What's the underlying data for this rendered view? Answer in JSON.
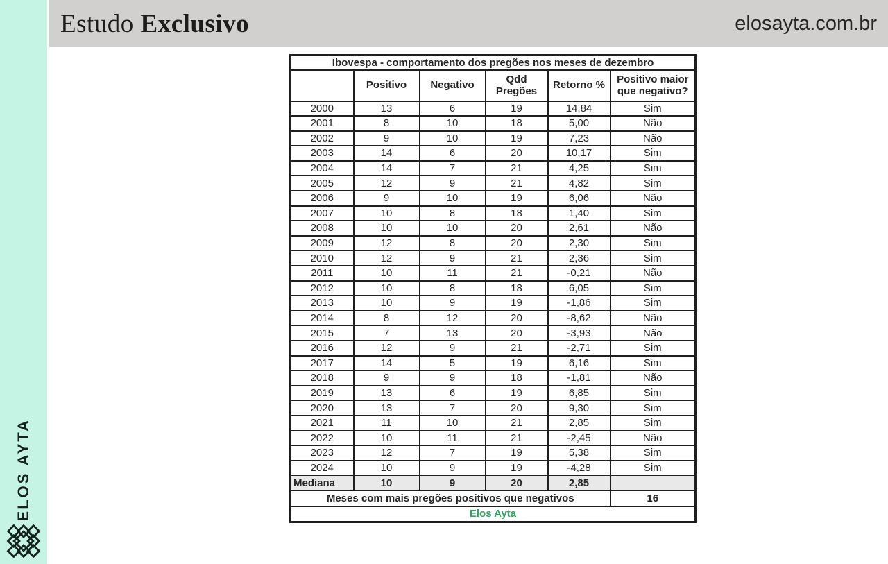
{
  "sidebar": {
    "brand": "ELOS AYTA",
    "bg_color": "#c6f4e4"
  },
  "header": {
    "title_regular": "Estudo ",
    "title_bold": "Exclusivo",
    "site": "elosayta.com.br",
    "bg_color": "#d2d0ce"
  },
  "chart_data": {
    "type": "table",
    "title": "Ibovespa - comportamento dos pregões nos meses de dezembro",
    "columns": [
      "",
      "Positivo",
      "Negativo",
      "Qdd\nPregões",
      "Retorno %",
      "Positivo maior\nque negativo?"
    ],
    "rows": [
      [
        "2000",
        "13",
        "6",
        "19",
        "14,84",
        "Sim"
      ],
      [
        "2001",
        "8",
        "10",
        "18",
        "5,00",
        "Não"
      ],
      [
        "2002",
        "9",
        "10",
        "19",
        "7,23",
        "Não"
      ],
      [
        "2003",
        "14",
        "6",
        "20",
        "10,17",
        "Sim"
      ],
      [
        "2004",
        "14",
        "7",
        "21",
        "4,25",
        "Sim"
      ],
      [
        "2005",
        "12",
        "9",
        "21",
        "4,82",
        "Sim"
      ],
      [
        "2006",
        "9",
        "10",
        "19",
        "6,06",
        "Não"
      ],
      [
        "2007",
        "10",
        "8",
        "18",
        "1,40",
        "Sim"
      ],
      [
        "2008",
        "10",
        "10",
        "20",
        "2,61",
        "Não"
      ],
      [
        "2009",
        "12",
        "8",
        "20",
        "2,30",
        "Sim"
      ],
      [
        "2010",
        "12",
        "9",
        "21",
        "2,36",
        "Sim"
      ],
      [
        "2011",
        "10",
        "11",
        "21",
        "-0,21",
        "Não"
      ],
      [
        "2012",
        "10",
        "8",
        "18",
        "6,05",
        "Sim"
      ],
      [
        "2013",
        "10",
        "9",
        "19",
        "-1,86",
        "Sim"
      ],
      [
        "2014",
        "8",
        "12",
        "20",
        "-8,62",
        "Não"
      ],
      [
        "2015",
        "7",
        "13",
        "20",
        "-3,93",
        "Não"
      ],
      [
        "2016",
        "12",
        "9",
        "21",
        "-2,71",
        "Sim"
      ],
      [
        "2017",
        "14",
        "5",
        "19",
        "6,16",
        "Sim"
      ],
      [
        "2018",
        "9",
        "9",
        "18",
        "-1,81",
        "Não"
      ],
      [
        "2019",
        "13",
        "6",
        "19",
        "6,85",
        "Sim"
      ],
      [
        "2020",
        "13",
        "7",
        "20",
        "9,30",
        "Sim"
      ],
      [
        "2021",
        "11",
        "10",
        "21",
        "2,85",
        "Sim"
      ],
      [
        "2022",
        "10",
        "11",
        "21",
        "-2,45",
        "Não"
      ],
      [
        "2023",
        "12",
        "7",
        "19",
        "5,38",
        "Sim"
      ],
      [
        "2024",
        "10",
        "9",
        "19",
        "-4,28",
        "Sim"
      ]
    ],
    "median_row": [
      "Mediana",
      "10",
      "9",
      "20",
      "2,85",
      ""
    ],
    "summary": {
      "label": "Meses com mais pregões positivos que negativos",
      "value": "16"
    },
    "footer": "Elos Ayta",
    "footer_color": "#2aa75f",
    "median_bg_color": "#e9e9e9",
    "layout": {
      "grid": true,
      "legend": "none"
    }
  }
}
